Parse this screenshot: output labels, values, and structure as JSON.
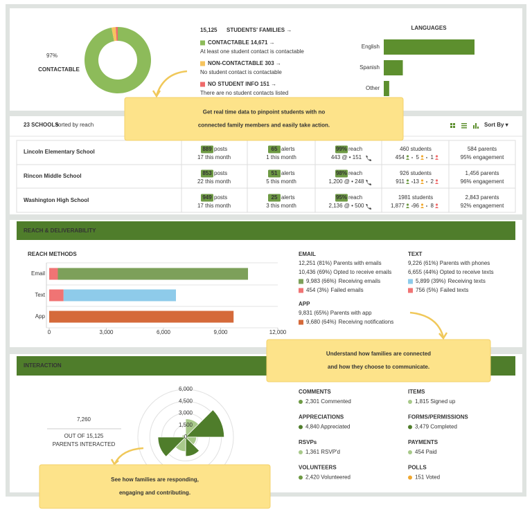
{
  "overview": {
    "contactable_percent": "97%",
    "contactable_label": "CONTACTABLE",
    "total": "15,125",
    "total_label": "STUDENTS' FAMILIES →",
    "statuses": [
      {
        "label": "CONTACTABLE 14,671 →",
        "description": "At least one student contact is contactable",
        "color": "#8dbb5a"
      },
      {
        "label": "NON-CONTACTABLE 303 →",
        "description": "No student contact is contactable",
        "color": "#f6c45e"
      },
      {
        "label": "NO STUDENT INFO 151 →",
        "description": "There are no student contacts listed",
        "color": "#ef6b6b"
      }
    ],
    "donut": {
      "type": "pie",
      "values": [
        14671,
        303,
        151
      ],
      "colors": [
        "#8dbb5a",
        "#f6c45e",
        "#ef6b6b"
      ]
    }
  },
  "languages": {
    "type": "bar",
    "title": "LANGUAGES",
    "categories": [
      "English",
      "Spanish",
      "Other"
    ],
    "values": [
      100,
      21,
      6
    ],
    "color": "#5d8f2e"
  },
  "callouts": [
    [
      "Get real time data to pinpoint students with no",
      "connected family members and easily take action."
    ],
    [
      "Understand how families are connected",
      "and how they choose to communicate."
    ],
    [
      "See how families are responding,",
      "engaging and contributing."
    ]
  ],
  "schools": {
    "count": "23 SCHOOLS",
    "sort_note": "sorted by reach",
    "sort_by": "Sort By ▾",
    "rows": [
      {
        "name": "Lincoln Elementary School",
        "posts": "889",
        "posts_label": "posts",
        "posts_month": "17 this month",
        "alerts": "65",
        "alerts_label": "alerts",
        "alerts_month": "1 this month",
        "reach": "99%",
        "reach_label": "reach",
        "reach_detail": "443 @ • 151",
        "students": "460 students",
        "student_counts": [
          "454",
          "5",
          "1"
        ],
        "parents": "584 parents",
        "engagement": "95% engagement"
      },
      {
        "name": "Rincon Middle School",
        "posts": "853",
        "posts_label": "posts",
        "posts_month": "22 this month",
        "alerts": "51",
        "alerts_label": "alerts",
        "alerts_month": "5 this month",
        "reach": "98%",
        "reach_label": "reach",
        "reach_detail": "1,200 @ • 248",
        "students": "926 students",
        "student_counts": [
          "911",
          "13",
          "2"
        ],
        "parents": "1,456 parents",
        "engagement": "96% engagement"
      },
      {
        "name": "Washington High School",
        "posts": "949",
        "posts_label": "posts",
        "posts_month": "17 this month",
        "alerts": "25",
        "alerts_label": "alerts",
        "alerts_month": "3 this month",
        "reach": "95%",
        "reach_label": "reach",
        "reach_detail": "2,136 @ • 500",
        "students": "1981 students",
        "student_counts": [
          "1,877",
          "96",
          "8"
        ],
        "parents": "2,843 parents",
        "engagement": "92% engagement"
      }
    ]
  },
  "reach": {
    "header": "REACH & DELIVERABILITY",
    "chart": {
      "type": "bar",
      "title": "REACH METHODS",
      "categories": [
        "Email",
        "Text",
        "App"
      ],
      "segments": [
        [
          {
            "value": 454,
            "color": "#f07474"
          },
          {
            "value": 9983,
            "color": "#7da05a"
          }
        ],
        [
          {
            "value": 756,
            "color": "#f07474"
          },
          {
            "value": 5899,
            "color": "#8ecbea"
          }
        ],
        [
          {
            "value": 9680,
            "color": "#d56a3a"
          }
        ]
      ],
      "xlim": [
        0,
        12000
      ],
      "xticks": [
        0,
        {
          "value": 3000,
          "label": "3,000"
        },
        {
          "value": 6000,
          "label": "6,000"
        },
        {
          "value": 9000,
          "label": "9,000"
        },
        {
          "value": 12000,
          "label": "12,000"
        }
      ]
    },
    "channels": [
      {
        "title": "EMAIL",
        "lines": [
          "12,251 (81%) Parents with emails",
          "10,436 (69%) Opted to receive emails"
        ],
        "legend": [
          {
            "count": "9,983 (66%)",
            "text": "Receiving emails",
            "color": "#7da05a"
          },
          {
            "count": "454 (3%)",
            "text": "Failed emails",
            "color": "#f07474"
          }
        ]
      },
      {
        "title": "TEXT",
        "lines": [
          "9,226 (61%) Parents with phones",
          "6,655 (44%) Opted to receive texts"
        ],
        "legend": [
          {
            "count": "5,899 (39%)",
            "text": "Receiving texts",
            "color": "#8ecbea"
          },
          {
            "count": "756 (5%)",
            "text": "Failed texts",
            "color": "#f07474"
          }
        ]
      },
      {
        "title": "APP",
        "lines": [
          "9,831 (65%) Parents with app"
        ],
        "legend": [
          {
            "count": "9,680 (64%)",
            "text": "Receiving notifications",
            "color": "#d56a3a"
          }
        ]
      }
    ]
  },
  "interaction": {
    "header": "INTERACTION",
    "total": "7,260",
    "out_of": "OUT OF 15,125",
    "caption": "PARENTS INTERACTED",
    "polar": {
      "type": "polar",
      "values": [
        2301,
        4840,
        1361,
        2420,
        1815,
        3479,
        454,
        151
      ],
      "colors": [
        "#a8c98a",
        "#4f7d2b",
        "#a8c98a",
        "#4f7d2b",
        "#a8c98a",
        "#4f7d2b",
        "#a8c98a",
        "#4f7d2b"
      ],
      "rlim": [
        0,
        6000
      ],
      "rticks": [
        0,
        {
          "value": 1500,
          "label": "1,500"
        },
        {
          "value": 3000,
          "label": "3,000"
        },
        {
          "value": 4500,
          "label": "4,500"
        },
        {
          "value": 6000,
          "label": "6,000"
        }
      ]
    },
    "activities": [
      {
        "title": "COMMENTS",
        "detail": "2,301 Commented",
        "color": "#6e9a44"
      },
      {
        "title": "APPRECIATIONS",
        "detail": "4,840 Appreciated",
        "color": "#4f7d2b"
      },
      {
        "title": "RSVPs",
        "detail": "1,361 RSVP'd",
        "color": "#a8c98a"
      },
      {
        "title": "VOLUNTEERS",
        "detail": "2,420 Volunteered",
        "color": "#6e9a44"
      },
      {
        "title": "ITEMS",
        "detail": "1,815 Signed up",
        "color": "#a8c98a"
      },
      {
        "title": "FORMS/PERMISSIONS",
        "detail": "3,479 Completed",
        "color": "#4f7d2b"
      },
      {
        "title": "PAYMENTS",
        "detail": "454 Paid",
        "color": "#a8c98a"
      },
      {
        "title": "POLLS",
        "detail": "151 Voted",
        "color": "#f0a830"
      }
    ]
  }
}
